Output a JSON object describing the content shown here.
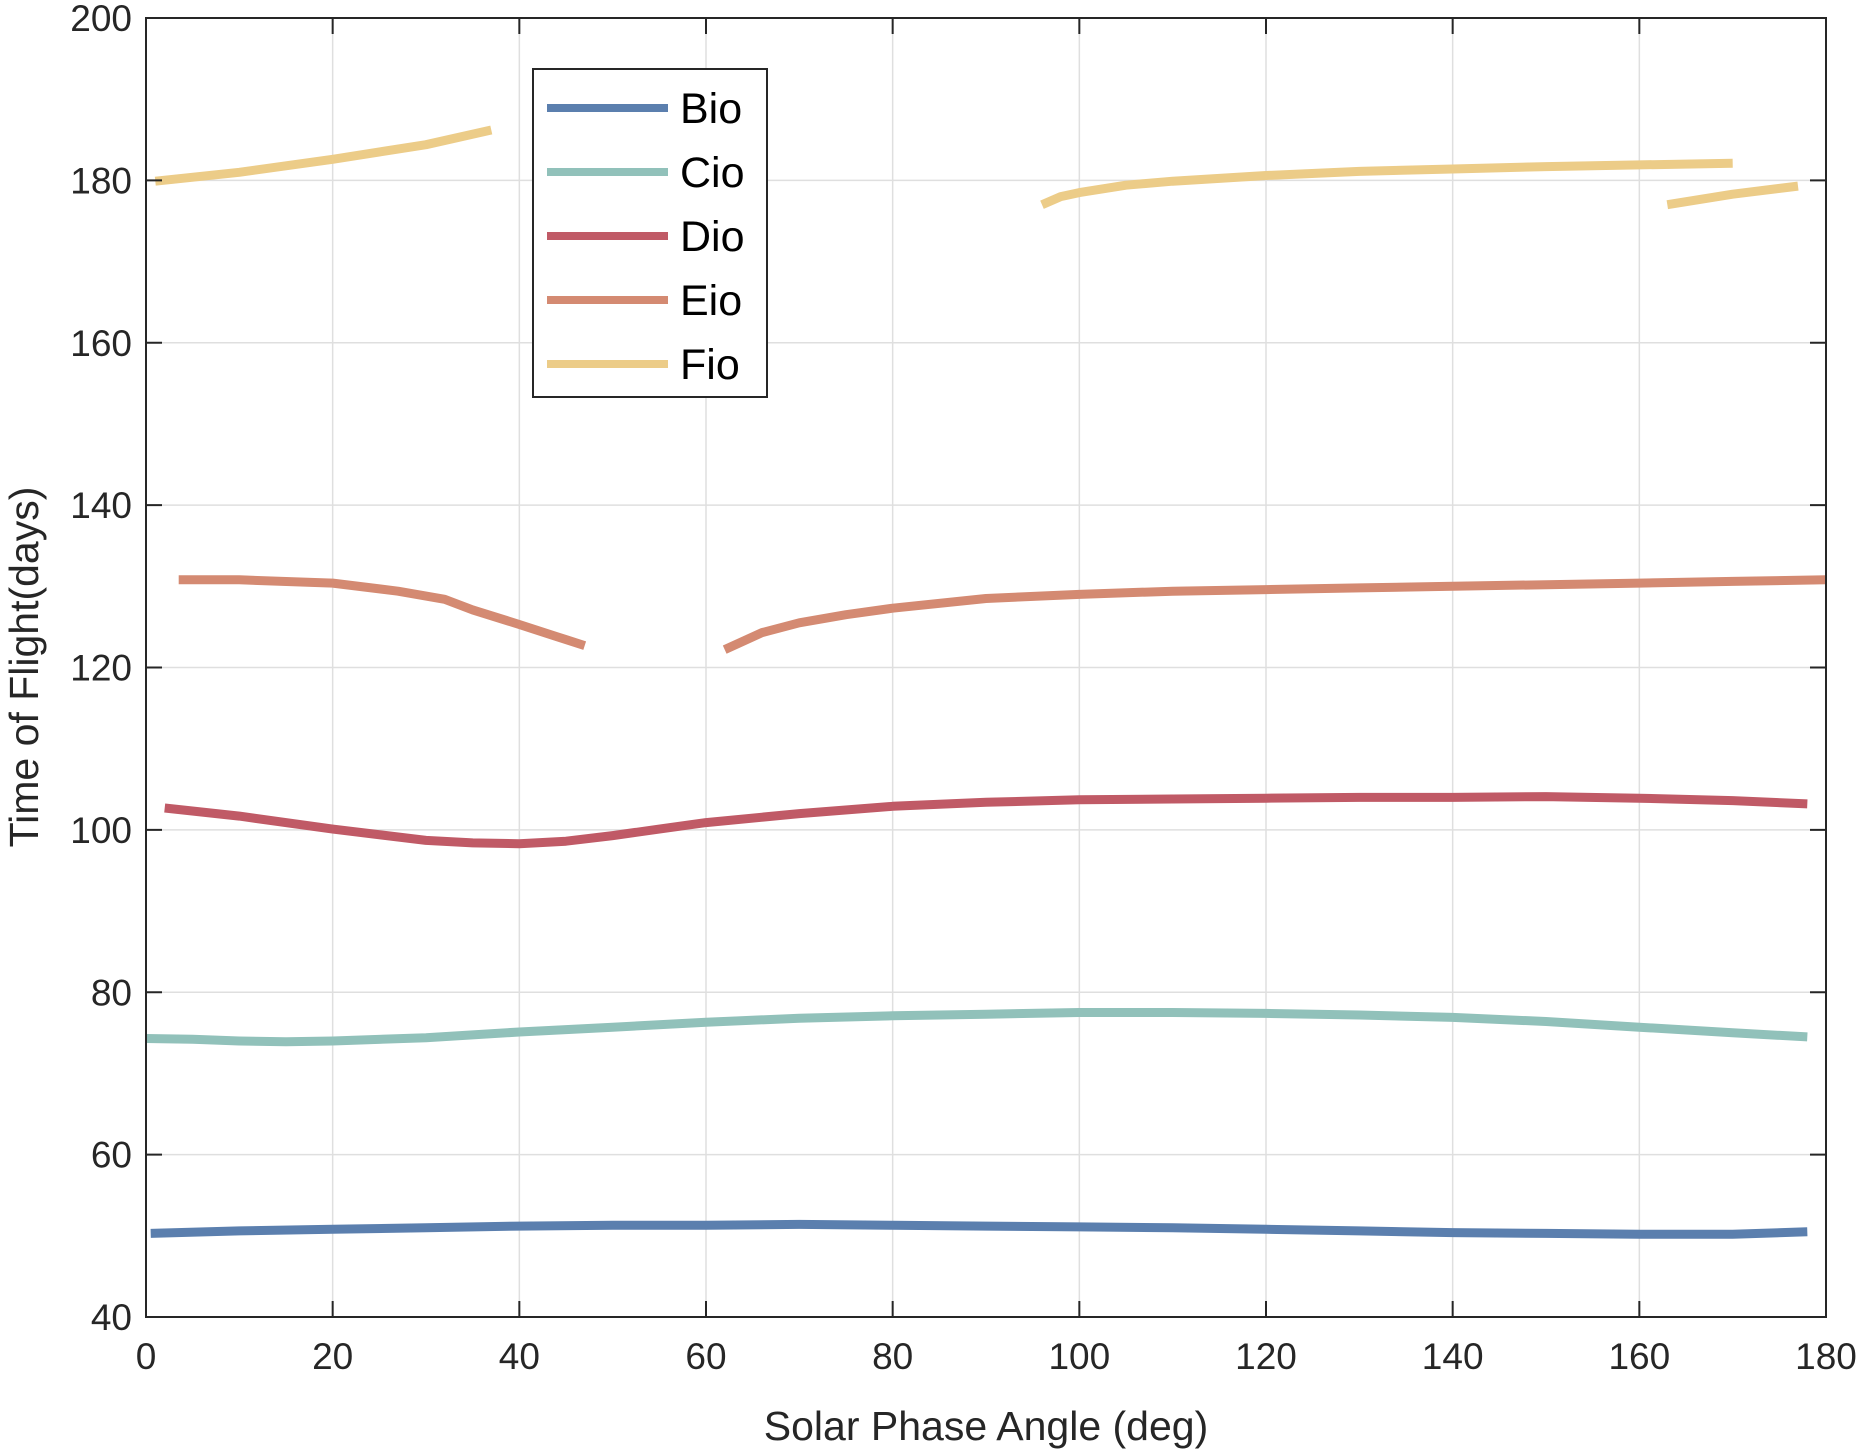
{
  "chart_data": {
    "type": "line",
    "title": "",
    "xlabel": "Solar Phase Angle (deg)",
    "ylabel": "Time of Flight(days)",
    "xlim": [
      0,
      180
    ],
    "ylim": [
      40,
      200
    ],
    "xticks": [
      0,
      20,
      40,
      60,
      80,
      100,
      120,
      140,
      160,
      180
    ],
    "yticks": [
      40,
      60,
      80,
      100,
      120,
      140,
      160,
      180,
      200
    ],
    "grid": true,
    "legend_position": "top-left",
    "series": [
      {
        "name": "Bio",
        "color": "#5b7fae",
        "segments": [
          [
            [
              0.5,
              50.3
            ],
            [
              10,
              50.6
            ],
            [
              20,
              50.8
            ],
            [
              30,
              51.0
            ],
            [
              40,
              51.2
            ],
            [
              50,
              51.3
            ],
            [
              60,
              51.3
            ],
            [
              70,
              51.4
            ],
            [
              80,
              51.3
            ],
            [
              90,
              51.2
            ],
            [
              100,
              51.1
            ],
            [
              110,
              51.0
            ],
            [
              120,
              50.8
            ],
            [
              130,
              50.6
            ],
            [
              140,
              50.4
            ],
            [
              150,
              50.3
            ],
            [
              160,
              50.2
            ],
            [
              170,
              50.2
            ],
            [
              178,
              50.5
            ]
          ]
        ]
      },
      {
        "name": "Cio",
        "color": "#91c1ba",
        "segments": [
          [
            [
              0,
              74.3
            ],
            [
              5,
              74.2
            ],
            [
              10,
              74.0
            ],
            [
              15,
              73.9
            ],
            [
              20,
              74.0
            ],
            [
              30,
              74.4
            ],
            [
              40,
              75.1
            ],
            [
              50,
              75.7
            ],
            [
              60,
              76.3
            ],
            [
              70,
              76.8
            ],
            [
              80,
              77.1
            ],
            [
              90,
              77.3
            ],
            [
              100,
              77.5
            ],
            [
              110,
              77.5
            ],
            [
              120,
              77.4
            ],
            [
              130,
              77.2
            ],
            [
              140,
              76.9
            ],
            [
              150,
              76.4
            ],
            [
              160,
              75.7
            ],
            [
              170,
              75.0
            ],
            [
              178,
              74.5
            ]
          ]
        ]
      },
      {
        "name": "Dio",
        "color": "#c05a66",
        "segments": [
          [
            [
              2,
              102.7
            ],
            [
              10,
              101.7
            ],
            [
              20,
              100.1
            ],
            [
              30,
              98.7
            ],
            [
              35,
              98.4
            ],
            [
              40,
              98.3
            ],
            [
              45,
              98.6
            ],
            [
              50,
              99.3
            ],
            [
              55,
              100.1
            ],
            [
              60,
              100.9
            ],
            [
              70,
              102.0
            ],
            [
              80,
              102.9
            ],
            [
              90,
              103.4
            ],
            [
              100,
              103.7
            ],
            [
              110,
              103.8
            ],
            [
              120,
              103.9
            ],
            [
              130,
              104.0
            ],
            [
              140,
              104.0
            ],
            [
              150,
              104.1
            ],
            [
              160,
              103.9
            ],
            [
              170,
              103.6
            ],
            [
              178,
              103.2
            ]
          ]
        ]
      },
      {
        "name": "Eio",
        "color": "#d48a72",
        "segments": [
          [
            [
              3.5,
              130.8
            ],
            [
              10,
              130.8
            ],
            [
              20,
              130.4
            ],
            [
              27,
              129.4
            ],
            [
              32,
              128.4
            ],
            [
              35,
              127.1
            ],
            [
              40,
              125.3
            ],
            [
              44,
              123.8
            ],
            [
              47,
              122.7
            ]
          ],
          [
            [
              62,
              122.2
            ],
            [
              66,
              124.3
            ],
            [
              70,
              125.5
            ],
            [
              75,
              126.5
            ],
            [
              80,
              127.3
            ],
            [
              90,
              128.5
            ],
            [
              100,
              129.0
            ],
            [
              110,
              129.4
            ],
            [
              120,
              129.6
            ],
            [
              130,
              129.8
            ],
            [
              140,
              130.0
            ],
            [
              150,
              130.2
            ],
            [
              160,
              130.4
            ],
            [
              170,
              130.6
            ],
            [
              180,
              130.8
            ]
          ]
        ]
      },
      {
        "name": "Fio",
        "color": "#eccc88",
        "segments": [
          [
            [
              1,
              179.9
            ],
            [
              10,
              181.0
            ],
            [
              20,
              182.6
            ],
            [
              30,
              184.4
            ],
            [
              37,
              186.2
            ]
          ],
          [
            [
              96,
              177.0
            ],
            [
              98,
              178.0
            ],
            [
              100,
              178.5
            ],
            [
              105,
              179.4
            ],
            [
              110,
              179.9
            ],
            [
              120,
              180.6
            ],
            [
              130,
              181.1
            ],
            [
              140,
              181.4
            ],
            [
              150,
              181.7
            ],
            [
              160,
              181.9
            ],
            [
              170,
              182.1
            ]
          ],
          [
            [
              163,
              177.0
            ],
            [
              170,
              178.3
            ],
            [
              177,
              179.3
            ]
          ]
        ]
      }
    ]
  }
}
